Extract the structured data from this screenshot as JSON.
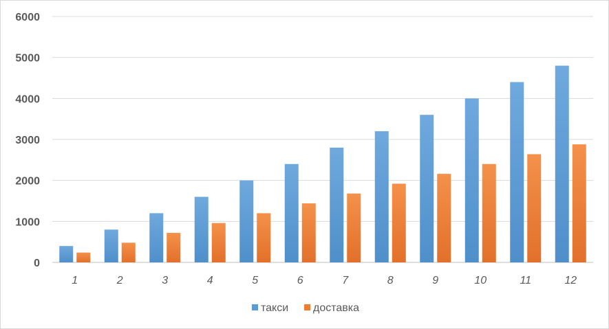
{
  "chart_data": {
    "type": "bar",
    "categories": [
      "1",
      "2",
      "3",
      "4",
      "5",
      "6",
      "7",
      "8",
      "9",
      "10",
      "11",
      "12"
    ],
    "series": [
      {
        "name": "такси",
        "color": "#5b9bd5",
        "values": [
          400,
          800,
          1200,
          1600,
          2000,
          2400,
          2800,
          3200,
          3600,
          4000,
          4400,
          4800
        ]
      },
      {
        "name": "доставка",
        "color": "#ed7d31",
        "values": [
          240,
          480,
          720,
          960,
          1200,
          1440,
          1680,
          1920,
          2160,
          2400,
          2640,
          2880
        ]
      }
    ],
    "yticks": [
      "0",
      "1000",
      "2000",
      "3000",
      "4000",
      "5000",
      "6000"
    ],
    "ylim": [
      0,
      6000
    ],
    "grid": true,
    "legend": "bottom",
    "title": "",
    "xlabel": "",
    "ylabel": ""
  }
}
